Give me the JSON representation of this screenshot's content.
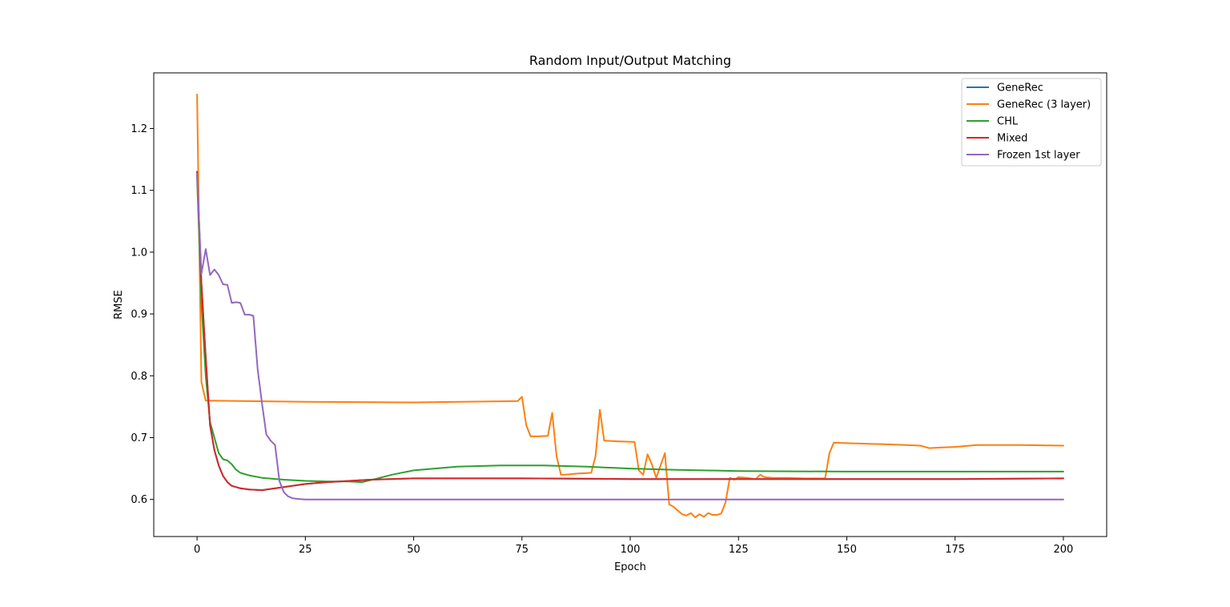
{
  "chart_data": {
    "type": "line",
    "title": "Random Input/Output Matching",
    "xlabel": "Epoch",
    "ylabel": "RMSE",
    "xlim": [
      -10,
      210
    ],
    "ylim": [
      0.54,
      1.29
    ],
    "xticks": [
      0,
      25,
      50,
      75,
      100,
      125,
      150,
      175,
      200
    ],
    "yticks": [
      0.6,
      0.7,
      0.8,
      0.9,
      1.0,
      1.1,
      1.2
    ],
    "xtick_labels": [
      "0",
      "25",
      "50",
      "75",
      "100",
      "125",
      "150",
      "175",
      "200"
    ],
    "ytick_labels": [
      "0.6",
      "0.7",
      "0.8",
      "0.9",
      "1.0",
      "1.1",
      "1.2"
    ],
    "grid": false,
    "legend_position": "top-right",
    "series": [
      {
        "name": "GeneRec",
        "color": "#1f77b4",
        "x": [
          0,
          1,
          2,
          3,
          4,
          5,
          6,
          7,
          8,
          10,
          12,
          15,
          20,
          25,
          30,
          40,
          50,
          75,
          100,
          125,
          150,
          175,
          200
        ],
        "y": [
          1.13,
          0.95,
          0.83,
          0.72,
          0.68,
          0.655,
          0.638,
          0.628,
          0.622,
          0.618,
          0.616,
          0.615,
          0.62,
          0.625,
          0.628,
          0.632,
          0.634,
          0.634,
          0.633,
          0.633,
          0.633,
          0.633,
          0.634
        ]
      },
      {
        "name": "GeneRec (3 layer)",
        "color": "#ff7f0e",
        "x": [
          0,
          1,
          2,
          25,
          50,
          74,
          75,
          76,
          77,
          79,
          81,
          82,
          83,
          84,
          85,
          88,
          91,
          92,
          93,
          94,
          97,
          101,
          102,
          103,
          104,
          105,
          106,
          107,
          108,
          109,
          110,
          111,
          112,
          113,
          114,
          115,
          116,
          117,
          118,
          119,
          120,
          121,
          122,
          123,
          124,
          125,
          127,
          129,
          130,
          131,
          133,
          137,
          140,
          143,
          145,
          146,
          147,
          150,
          160,
          167,
          169,
          172,
          175,
          180,
          190,
          200
        ],
        "y": [
          1.255,
          0.79,
          0.76,
          0.758,
          0.757,
          0.759,
          0.766,
          0.72,
          0.702,
          0.702,
          0.703,
          0.74,
          0.67,
          0.64,
          0.64,
          0.642,
          0.643,
          0.67,
          0.745,
          0.695,
          0.694,
          0.693,
          0.647,
          0.64,
          0.673,
          0.657,
          0.635,
          0.655,
          0.675,
          0.592,
          0.588,
          0.582,
          0.576,
          0.574,
          0.578,
          0.571,
          0.576,
          0.572,
          0.578,
          0.575,
          0.575,
          0.577,
          0.595,
          0.635,
          0.632,
          0.636,
          0.635,
          0.633,
          0.64,
          0.636,
          0.635,
          0.635,
          0.634,
          0.634,
          0.634,
          0.675,
          0.692,
          0.691,
          0.689,
          0.687,
          0.683,
          0.684,
          0.685,
          0.688,
          0.688,
          0.687
        ]
      },
      {
        "name": "CHL",
        "color": "#2ca02c",
        "x": [
          0,
          1,
          2,
          3,
          4,
          5,
          6,
          7,
          8,
          9,
          10,
          12,
          15,
          20,
          25,
          30,
          35,
          38,
          40,
          45,
          50,
          60,
          70,
          80,
          90,
          100,
          110,
          125,
          150,
          175,
          200
        ],
        "y": [
          1.12,
          0.92,
          0.8,
          0.725,
          0.7,
          0.675,
          0.665,
          0.663,
          0.657,
          0.648,
          0.643,
          0.639,
          0.635,
          0.632,
          0.63,
          0.629,
          0.629,
          0.628,
          0.631,
          0.64,
          0.647,
          0.653,
          0.655,
          0.655,
          0.653,
          0.65,
          0.648,
          0.646,
          0.645,
          0.645,
          0.645
        ]
      },
      {
        "name": "Mixed",
        "color": "#d62728",
        "x": [
          0,
          1,
          2,
          3,
          4,
          5,
          6,
          7,
          8,
          10,
          12,
          15,
          20,
          25,
          30,
          40,
          50,
          75,
          100,
          125,
          150,
          175,
          200
        ],
        "y": [
          1.13,
          0.95,
          0.83,
          0.72,
          0.68,
          0.655,
          0.638,
          0.628,
          0.622,
          0.618,
          0.616,
          0.615,
          0.62,
          0.625,
          0.628,
          0.632,
          0.634,
          0.634,
          0.633,
          0.633,
          0.633,
          0.633,
          0.634
        ]
      },
      {
        "name": "Frozen 1st layer",
        "color": "#9467bd",
        "x": [
          0,
          1,
          2,
          3,
          4,
          5,
          6,
          7,
          8,
          9,
          10,
          11,
          12,
          13,
          14,
          15,
          16,
          17,
          18,
          19,
          20,
          21,
          22,
          23,
          25,
          30,
          50,
          100,
          150,
          200
        ],
        "y": [
          1.127,
          0.965,
          1.005,
          0.963,
          0.972,
          0.963,
          0.948,
          0.947,
          0.918,
          0.919,
          0.918,
          0.899,
          0.899,
          0.897,
          0.81,
          0.755,
          0.705,
          0.695,
          0.688,
          0.63,
          0.612,
          0.605,
          0.602,
          0.601,
          0.6,
          0.6,
          0.6,
          0.6,
          0.6,
          0.6
        ]
      }
    ]
  }
}
